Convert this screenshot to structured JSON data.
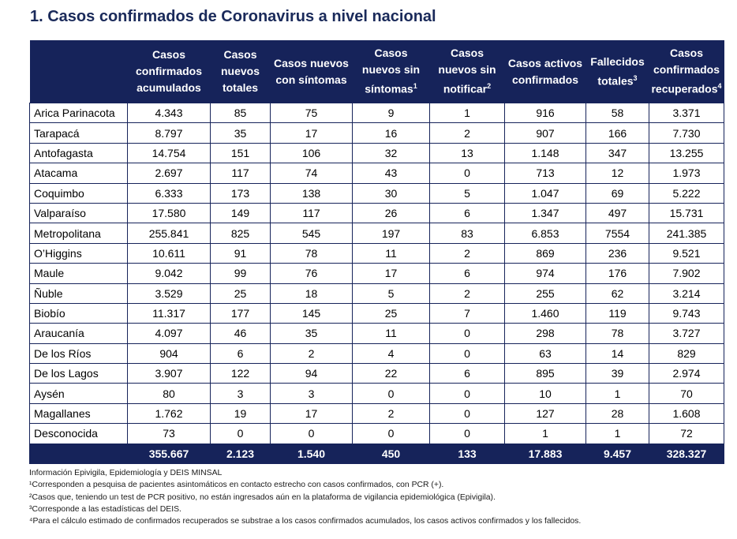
{
  "title": "1. Casos confirmados de Coronavirus a nivel nacional",
  "headers": [
    {
      "text": "",
      "sup": ""
    },
    {
      "text": "Casos confirmados acumulados",
      "sup": ""
    },
    {
      "text": "Casos nuevos totales",
      "sup": ""
    },
    {
      "text": "Casos nuevos con síntomas",
      "sup": ""
    },
    {
      "text": "Casos nuevos sin síntomas",
      "sup": "1"
    },
    {
      "text": "Casos nuevos sin notificar",
      "sup": "2"
    },
    {
      "text": "Casos activos confirmados",
      "sup": ""
    },
    {
      "text": "Fallecidos totales",
      "sup": "3"
    },
    {
      "text": "Casos confirmados recuperados",
      "sup": "4"
    }
  ],
  "rows": [
    [
      "Arica Parinacota",
      "4.343",
      "85",
      "75",
      "9",
      "1",
      "916",
      "58",
      "3.371"
    ],
    [
      "Tarapacá",
      "8.797",
      "35",
      "17",
      "16",
      "2",
      "907",
      "166",
      "7.730"
    ],
    [
      "Antofagasta",
      "14.754",
      "151",
      "106",
      "32",
      "13",
      "1.148",
      "347",
      "13.255"
    ],
    [
      "Atacama",
      "2.697",
      "117",
      "74",
      "43",
      "0",
      "713",
      "12",
      "1.973"
    ],
    [
      "Coquimbo",
      "6.333",
      "173",
      "138",
      "30",
      "5",
      "1.047",
      "69",
      "5.222"
    ],
    [
      "Valparaíso",
      "17.580",
      "149",
      "117",
      "26",
      "6",
      "1.347",
      "497",
      "15.731"
    ],
    [
      "Metropolitana",
      "255.841",
      "825",
      "545",
      "197",
      "83",
      "6.853",
      "7554",
      "241.385"
    ],
    [
      "O’Higgins",
      "10.611",
      "91",
      "78",
      "11",
      "2",
      "869",
      "236",
      "9.521"
    ],
    [
      "Maule",
      "9.042",
      "99",
      "76",
      "17",
      "6",
      "974",
      "176",
      "7.902"
    ],
    [
      "Ñuble",
      "3.529",
      "25",
      "18",
      "5",
      "2",
      "255",
      "62",
      "3.214"
    ],
    [
      "Biobío",
      "11.317",
      "177",
      "145",
      "25",
      "7",
      "1.460",
      "119",
      "9.743"
    ],
    [
      "Araucanía",
      "4.097",
      "46",
      "35",
      "11",
      "0",
      "298",
      "78",
      "3.727"
    ],
    [
      "De los Ríos",
      "904",
      "6",
      "2",
      "4",
      "0",
      "63",
      "14",
      "829"
    ],
    [
      "De los Lagos",
      "3.907",
      "122",
      "94",
      "22",
      "6",
      "895",
      "39",
      "2.974"
    ],
    [
      "Aysén",
      "80",
      "3",
      "3",
      "0",
      "0",
      "10",
      "1",
      "70"
    ],
    [
      "Magallanes",
      "1.762",
      "19",
      "17",
      "2",
      "0",
      "127",
      "28",
      "1.608"
    ],
    [
      "Desconocida",
      "73",
      "0",
      "0",
      "0",
      "0",
      "1",
      "1",
      "72"
    ]
  ],
  "totals": [
    "",
    "355.667",
    "2.123",
    "1.540",
    "450",
    "133",
    "17.883",
    "9.457",
    "328.327"
  ],
  "notes": [
    "Información Epivigila, Epidemiología y DEIS MINSAL",
    "¹Corresponden a pesquisa de pacientes asintomáticos en contacto estrecho con casos confirmados, con PCR (+).",
    "²Casos que, teniendo un test de PCR positivo, no están ingresados aún en la plataforma de vigilancia epidemiológica (Epivigila).",
    "³Corresponde a las estadísticas del DEIS.",
    "⁴Para el cálculo estimado de confirmados recuperados se substrae a los casos confirmados acumulados, los casos activos confirmados y los fallecidos."
  ],
  "colors": {
    "header_bg": "#16235a",
    "title": "#1a2a5a"
  }
}
